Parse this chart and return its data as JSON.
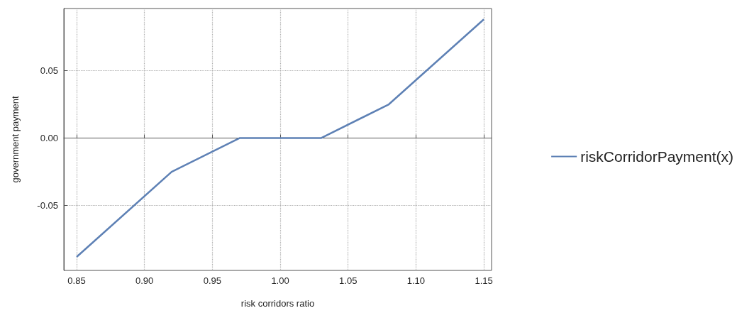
{
  "chart_data": {
    "type": "line",
    "xlabel": "risk corridors ratio",
    "ylabel": "government payment",
    "x": [
      0.85,
      0.92,
      0.97,
      1.03,
      1.08,
      1.15
    ],
    "series": [
      {
        "name": "riskCorridorPayment(x)",
        "color": "#5e81b5",
        "values": [
          -0.088,
          -0.025,
          0,
          0,
          0.025,
          0.088
        ]
      }
    ],
    "xlim": [
      0.8406,
      1.1557
    ],
    "ylim": [
      -0.098,
      0.096
    ],
    "xticks": [
      0.85,
      {
        "value": 0.9,
        "label": "0.90"
      },
      0.95,
      {
        "value": 1,
        "label": "1.00"
      },
      1.05,
      {
        "value": 1.1,
        "label": "1.10"
      },
      1.15
    ],
    "yticks": [
      -0.05,
      {
        "value": 0,
        "label": "0.00"
      },
      0.05
    ],
    "grid": true,
    "legend": "right",
    "marker": "none",
    "line_style": "solid"
  }
}
